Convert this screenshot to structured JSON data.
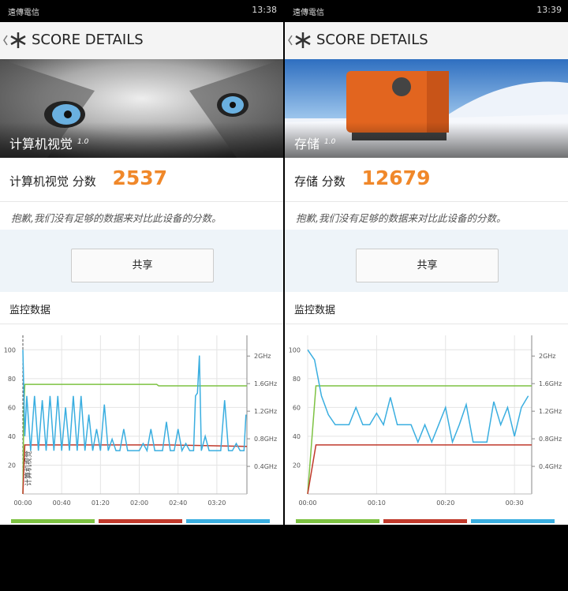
{
  "panels": [
    {
      "status": {
        "carrier": "遠傳電信",
        "time": "13:38"
      },
      "header": {
        "title": "SCORE DETAILS"
      },
      "hero": {
        "label": "计算机视觉",
        "version": "1.0"
      },
      "score": {
        "label": "计算机视觉 分数",
        "value": "2537"
      },
      "message": "抱歉,我们没有足够的数据来对比此设备的分数。",
      "share": "共享",
      "monitor": {
        "title": "监控数据",
        "chart": {
          "type": "line",
          "annotation": "计算机视觉",
          "xlim": [
            0,
            231
          ],
          "ylim": [
            0,
            110
          ],
          "y2lim": [
            0,
            2.3
          ],
          "xticks": [
            {
              "value": 0,
              "label": "00:00"
            },
            {
              "value": 40,
              "label": "00:40"
            },
            {
              "value": 80,
              "label": "01:20"
            },
            {
              "value": 120,
              "label": "02:00"
            },
            {
              "value": 160,
              "label": "02:40"
            },
            {
              "value": 200,
              "label": "03:20"
            }
          ],
          "yticks": [
            20,
            40,
            60,
            80,
            100
          ],
          "y2ticks": [
            {
              "value": 0.4,
              "label": "0.4GHz"
            },
            {
              "value": 0.8,
              "label": "0.8GHz"
            },
            {
              "value": 1.2,
              "label": "1.2GHz"
            },
            {
              "value": 1.6,
              "label": "1.6GHz"
            },
            {
              "value": 2,
              "label": "2GHz"
            }
          ],
          "series": [
            {
              "color": "#7dc242",
              "x": [
                0,
                1,
                2,
                138,
                140,
                231
              ],
              "values": [
                0,
                60,
                76,
                76,
                75,
                75
              ]
            },
            {
              "color": "#c0392b",
              "x": [
                0,
                2,
                150,
                231
              ],
              "values": [
                0,
                34,
                34,
                33
              ]
            },
            {
              "color": "#3aaee0",
              "x": [
                0,
                2,
                4,
                8,
                12,
                16,
                20,
                24,
                28,
                32,
                36,
                40,
                44,
                48,
                52,
                56,
                60,
                64,
                68,
                72,
                76,
                80,
                84,
                88,
                92,
                96,
                100,
                104,
                108,
                112,
                116,
                120,
                124,
                128,
                132,
                136,
                140,
                144,
                148,
                152,
                156,
                160,
                164,
                168,
                172,
                176,
                178,
                180,
                182,
                184,
                188,
                192,
                196,
                200,
                204,
                208,
                212,
                216,
                220,
                224,
                228,
                230
              ],
              "values": [
                100,
                40,
                68,
                30,
                68,
                30,
                65,
                30,
                68,
                30,
                68,
                30,
                60,
                30,
                68,
                30,
                68,
                30,
                55,
                30,
                45,
                30,
                62,
                30,
                38,
                30,
                30,
                45,
                30,
                30,
                30,
                30,
                35,
                30,
                45,
                30,
                30,
                30,
                50,
                30,
                30,
                45,
                30,
                35,
                30,
                30,
                68,
                70,
                96,
                30,
                40,
                30,
                30,
                30,
                30,
                65,
                30,
                30,
                35,
                30,
                30,
                55
              ]
            }
          ]
        }
      }
    },
    {
      "status": {
        "carrier": "遠傳電信",
        "time": "13:39"
      },
      "header": {
        "title": "SCORE DETAILS"
      },
      "hero": {
        "label": "存储",
        "version": "1.0"
      },
      "score": {
        "label": "存储 分数",
        "value": "12679"
      },
      "message": "抱歉,我们没有足够的数据来对比此设备的分数。",
      "share": "共享",
      "monitor": {
        "title": "监控数据",
        "chart": {
          "type": "line",
          "xlim": [
            0,
            32.5
          ],
          "ylim": [
            0,
            110
          ],
          "y2lim": [
            0,
            2.3
          ],
          "xticks": [
            {
              "value": 0,
              "label": "00:00"
            },
            {
              "value": 10,
              "label": "00:10"
            },
            {
              "value": 20,
              "label": "00:20"
            },
            {
              "value": 30,
              "label": "00:30"
            }
          ],
          "yticks": [
            20,
            40,
            60,
            80,
            100
          ],
          "y2ticks": [
            {
              "value": 0.4,
              "label": "0.4GHz"
            },
            {
              "value": 0.8,
              "label": "0.8GHz"
            },
            {
              "value": 1.2,
              "label": "1.2GHz"
            },
            {
              "value": 1.6,
              "label": "1.6GHz"
            },
            {
              "value": 2,
              "label": "2GHz"
            }
          ],
          "series": [
            {
              "color": "#7dc242",
              "x": [
                0,
                1.2,
                32.5
              ],
              "values": [
                0,
                75,
                75
              ]
            },
            {
              "color": "#c0392b",
              "x": [
                0,
                1.2,
                32.5
              ],
              "values": [
                0,
                34,
                34
              ]
            },
            {
              "color": "#3aaee0",
              "x": [
                0,
                1,
                2,
                3,
                4,
                5,
                6,
                7,
                8,
                9,
                10,
                11,
                12,
                13,
                14,
                15,
                16,
                17,
                18,
                19,
                20,
                21,
                22,
                23,
                24,
                25,
                26,
                27,
                28,
                29,
                30,
                31,
                32
              ],
              "values": [
                100,
                93,
                68,
                55,
                48,
                48,
                48,
                60,
                48,
                48,
                56,
                48,
                67,
                48,
                48,
                48,
                36,
                48,
                36,
                48,
                60,
                36,
                48,
                62,
                36,
                36,
                36,
                64,
                48,
                60,
                40,
                60,
                68
              ]
            }
          ]
        }
      }
    }
  ]
}
